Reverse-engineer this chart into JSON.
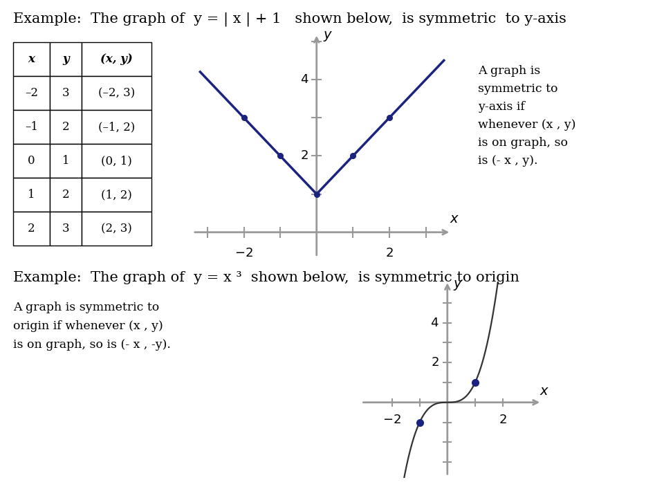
{
  "bg_color": "#ffffff",
  "title1_plain": "Example:  The graph of ",
  "title1_math": "y = | x | + 1",
  "title1_end": "  shown below,  is symmetric  to y-axis",
  "title2_plain": "Example:  The graph of ",
  "title2_math": "y = x",
  "title2_super": "3",
  "title2_end": "  shown below,  is symmetric to origin",
  "table_headers": [
    "x",
    "y",
    "(x, y)"
  ],
  "table_data": [
    [
      "–2",
      "3",
      "(–2, 3)"
    ],
    [
      "–1",
      "2",
      "(–1, 2)"
    ],
    [
      "0",
      "1",
      "(0, 1)"
    ],
    [
      "1",
      "2",
      "(1, 2)"
    ],
    [
      "2",
      "3",
      "(2, 3)"
    ]
  ],
  "abs_pts_x": [
    -2,
    -1,
    0,
    1,
    2
  ],
  "abs_pts_y": [
    3,
    2,
    1,
    2,
    3
  ],
  "text_right1": "A graph is\nsymmetric to\ny-axis if\nwhenever (x , y)\nis on graph, so\nis (- x , y).",
  "text_left2": "A graph is symmetric to\norigin if whenever (x , y)\nis on graph, so is (- x , -y).",
  "line_color": "#1a237e",
  "dot_color": "#1a237e",
  "axis_color": "#999999",
  "text_color": "#000000",
  "title_fontsize": 15,
  "body_fontsize": 13,
  "tick_label_fontsize": 13
}
